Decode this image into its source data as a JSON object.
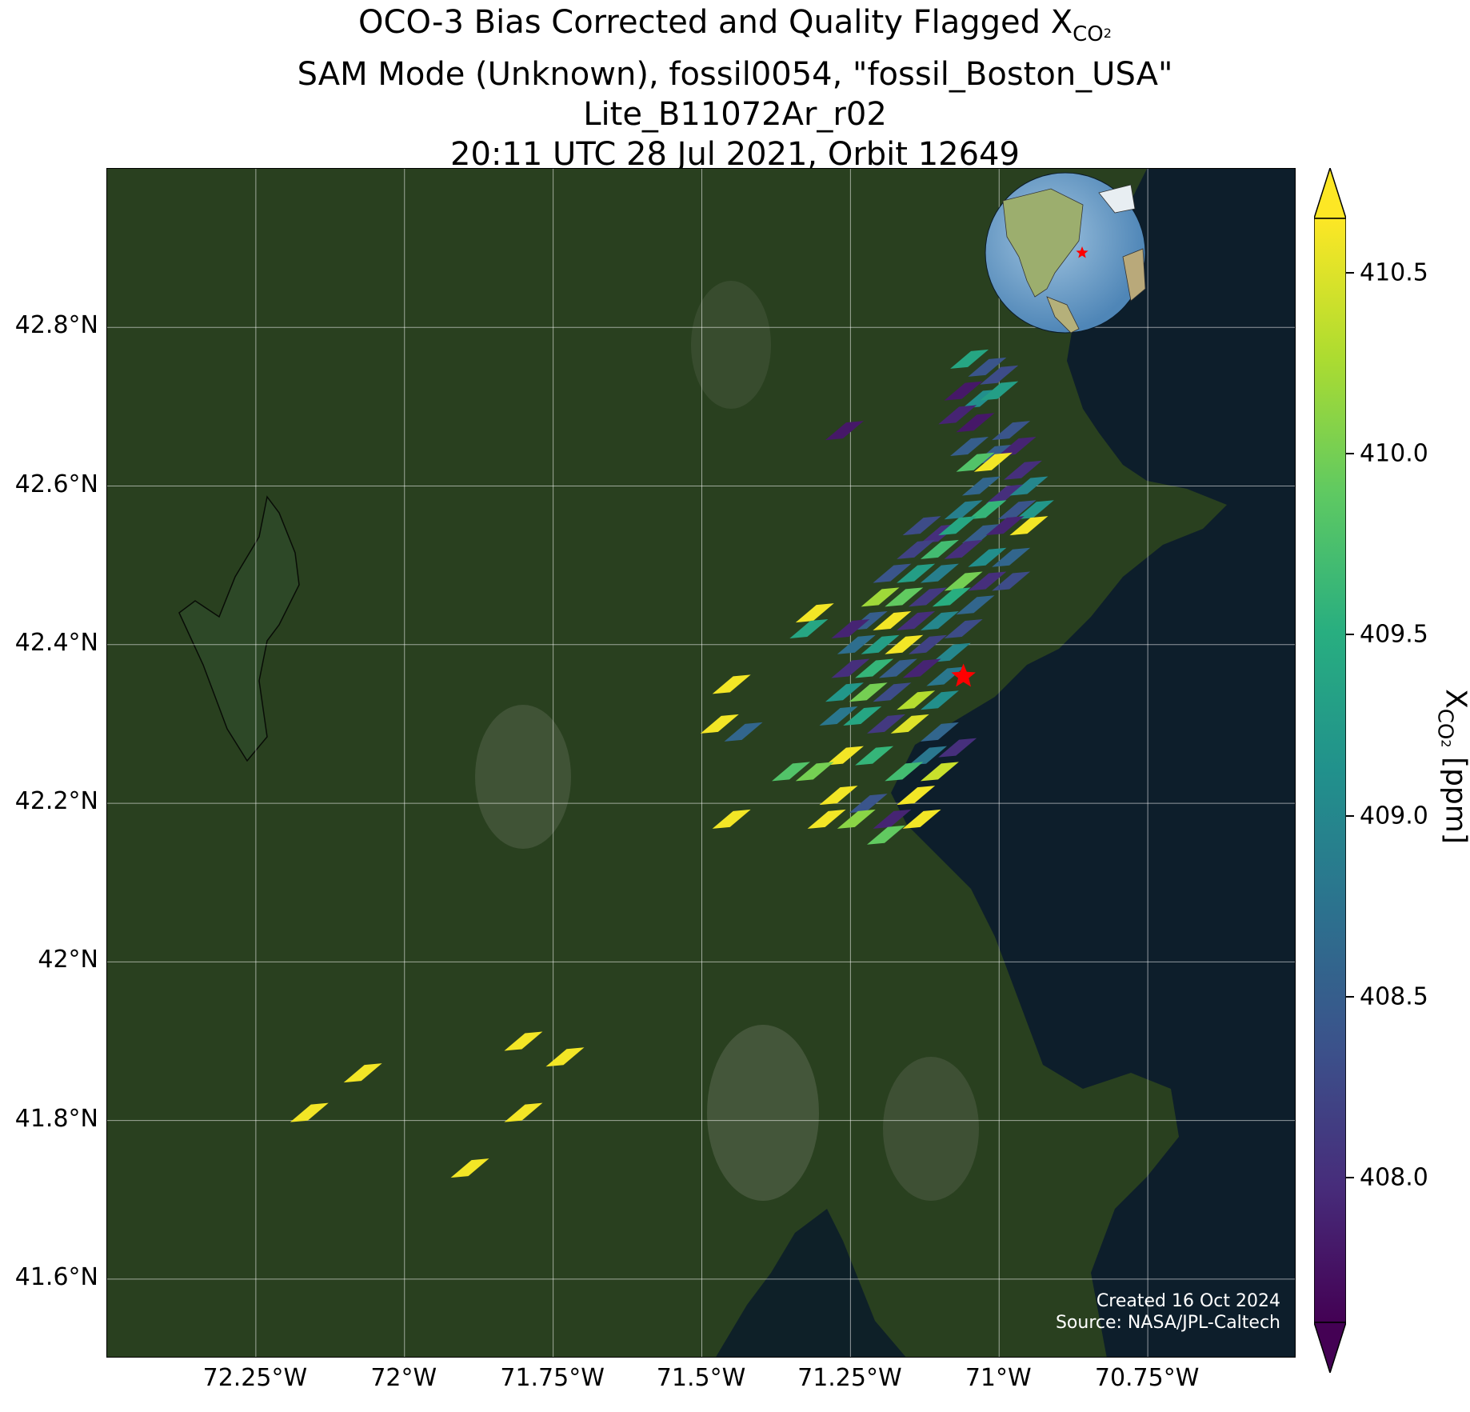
{
  "title": {
    "line1_prefix": "OCO-3 Bias Corrected and Quality Flagged X",
    "line1_sub": "CO",
    "line1_sub2": "2",
    "line2": "SAM Mode (Unknown), fossil0054, \"fossil_Boston_USA\"",
    "line3": "Lite_B11072Ar_r02",
    "line4": "20:11 UTC 28 Jul 2021, Orbit 12649"
  },
  "map": {
    "lon_range": [
      -72.5,
      -70.5
    ],
    "lat_range": [
      41.5,
      43.0
    ],
    "latitude_ticks": [
      {
        "value": 42.8,
        "label": "42.8°N"
      },
      {
        "value": 42.6,
        "label": "42.6°N"
      },
      {
        "value": 42.4,
        "label": "42.4°N"
      },
      {
        "value": 42.2,
        "label": "42.2°N"
      },
      {
        "value": 42.0,
        "label": "42°N"
      },
      {
        "value": 41.8,
        "label": "41.8°N"
      },
      {
        "value": 41.6,
        "label": "41.6°N"
      }
    ],
    "longitude_ticks": [
      {
        "value": -72.25,
        "label": "72.25°W"
      },
      {
        "value": -72.0,
        "label": "72°W"
      },
      {
        "value": -71.75,
        "label": "71.75°W"
      },
      {
        "value": -71.5,
        "label": "71.5°W"
      },
      {
        "value": -71.25,
        "label": "71.25°W"
      },
      {
        "value": -71.0,
        "label": "71°W"
      },
      {
        "value": -70.75,
        "label": "70.75°W"
      }
    ],
    "target_marker": {
      "lon": -71.06,
      "lat": 42.36,
      "color": "#ff0000",
      "symbol": "star"
    },
    "inset": "globe-locator-icon",
    "colors": {
      "land": "#29401f",
      "ocean": "#0d1e2b",
      "grid": "#ffffff"
    },
    "credit_line1": "Created 16 Oct 2024",
    "credit_line2": "Source: NASA/JPL-Caltech"
  },
  "colorbar": {
    "label_prefix": "X",
    "label_sub": "CO",
    "label_sub2": "2",
    "label_suffix": " [ppm]",
    "range": [
      407.6,
      410.65
    ],
    "extend": "both",
    "colormap": "viridis",
    "ticks": [
      {
        "value": 410.5,
        "label": "410.5"
      },
      {
        "value": 410.0,
        "label": "410.0"
      },
      {
        "value": 409.5,
        "label": "409.5"
      },
      {
        "value": 409.0,
        "label": "409.0"
      },
      {
        "value": 408.5,
        "label": "408.5"
      },
      {
        "value": 408.0,
        "label": "408.0"
      }
    ]
  },
  "chart_data": {
    "type": "scatter",
    "xlabel": "",
    "ylabel": "",
    "ylim": [
      41.5,
      43.0
    ],
    "xlim": [
      -72.5,
      -70.5
    ],
    "series": [
      {
        "points": [
          {
            "lon": -71.05,
            "lat": 42.76,
            "xco2": 409.4
          },
          {
            "lon": -71.02,
            "lat": 42.75,
            "xco2": 408.4
          },
          {
            "lon": -71.0,
            "lat": 42.74,
            "xco2": 408.3
          },
          {
            "lon": -71.06,
            "lat": 42.72,
            "xco2": 407.8
          },
          {
            "lon": -71.03,
            "lat": 42.71,
            "xco2": 409.1
          },
          {
            "lon": -71.0,
            "lat": 42.72,
            "xco2": 409.3
          },
          {
            "lon": -71.07,
            "lat": 42.69,
            "xco2": 407.9
          },
          {
            "lon": -71.04,
            "lat": 42.68,
            "xco2": 407.8
          },
          {
            "lon": -70.98,
            "lat": 42.67,
            "xco2": 408.4
          },
          {
            "lon": -71.26,
            "lat": 42.67,
            "xco2": 407.8
          },
          {
            "lon": -71.05,
            "lat": 42.65,
            "xco2": 408.5
          },
          {
            "lon": -71.01,
            "lat": 42.64,
            "xco2": 408.5
          },
          {
            "lon": -70.97,
            "lat": 42.65,
            "xco2": 407.9
          },
          {
            "lon": -71.04,
            "lat": 42.63,
            "xco2": 409.8
          },
          {
            "lon": -71.01,
            "lat": 42.63,
            "xco2": 410.6
          },
          {
            "lon": -70.96,
            "lat": 42.62,
            "xco2": 408.0
          },
          {
            "lon": -71.03,
            "lat": 42.6,
            "xco2": 408.6
          },
          {
            "lon": -70.99,
            "lat": 42.59,
            "xco2": 408.0
          },
          {
            "lon": -70.95,
            "lat": 42.6,
            "xco2": 409.0
          },
          {
            "lon": -71.06,
            "lat": 42.57,
            "xco2": 408.9
          },
          {
            "lon": -71.02,
            "lat": 42.57,
            "xco2": 409.6
          },
          {
            "lon": -70.97,
            "lat": 42.57,
            "xco2": 408.4
          },
          {
            "lon": -70.94,
            "lat": 42.57,
            "xco2": 409.2
          },
          {
            "lon": -71.1,
            "lat": 42.54,
            "xco2": 408.0
          },
          {
            "lon": -71.07,
            "lat": 42.55,
            "xco2": 409.4
          },
          {
            "lon": -71.03,
            "lat": 42.54,
            "xco2": 408.5
          },
          {
            "lon": -70.99,
            "lat": 42.55,
            "xco2": 407.9
          },
          {
            "lon": -70.95,
            "lat": 42.55,
            "xco2": 410.6
          },
          {
            "lon": -71.14,
            "lat": 42.52,
            "xco2": 408.2
          },
          {
            "lon": -71.1,
            "lat": 42.52,
            "xco2": 409.7
          },
          {
            "lon": -71.06,
            "lat": 42.52,
            "xco2": 408.0
          },
          {
            "lon": -71.02,
            "lat": 42.51,
            "xco2": 409.1
          },
          {
            "lon": -70.98,
            "lat": 42.51,
            "xco2": 408.6
          },
          {
            "lon": -71.18,
            "lat": 42.49,
            "xco2": 408.4
          },
          {
            "lon": -71.14,
            "lat": 42.49,
            "xco2": 409.3
          },
          {
            "lon": -71.1,
            "lat": 42.49,
            "xco2": 408.9
          },
          {
            "lon": -71.06,
            "lat": 42.48,
            "xco2": 410.0
          },
          {
            "lon": -71.02,
            "lat": 42.48,
            "xco2": 408.0
          },
          {
            "lon": -70.98,
            "lat": 42.48,
            "xco2": 408.3
          },
          {
            "lon": -71.2,
            "lat": 42.46,
            "xco2": 410.2
          },
          {
            "lon": -71.16,
            "lat": 42.46,
            "xco2": 409.9
          },
          {
            "lon": -71.12,
            "lat": 42.46,
            "xco2": 408.1
          },
          {
            "lon": -71.08,
            "lat": 42.46,
            "xco2": 409.5
          },
          {
            "lon": -71.04,
            "lat": 42.45,
            "xco2": 408.6
          },
          {
            "lon": -71.22,
            "lat": 42.43,
            "xco2": 408.5
          },
          {
            "lon": -71.18,
            "lat": 42.43,
            "xco2": 410.6
          },
          {
            "lon": -71.14,
            "lat": 42.43,
            "xco2": 408.0
          },
          {
            "lon": -71.1,
            "lat": 42.43,
            "xco2": 409.0
          },
          {
            "lon": -71.06,
            "lat": 42.42,
            "xco2": 408.3
          },
          {
            "lon": -71.24,
            "lat": 42.4,
            "xco2": 408.7
          },
          {
            "lon": -71.2,
            "lat": 42.4,
            "xco2": 409.3
          },
          {
            "lon": -71.16,
            "lat": 42.4,
            "xco2": 410.6
          },
          {
            "lon": -71.12,
            "lat": 42.4,
            "xco2": 408.2
          },
          {
            "lon": -71.08,
            "lat": 42.39,
            "xco2": 409.0
          },
          {
            "lon": -71.25,
            "lat": 42.37,
            "xco2": 408.0
          },
          {
            "lon": -71.21,
            "lat": 42.37,
            "xco2": 409.6
          },
          {
            "lon": -71.17,
            "lat": 42.37,
            "xco2": 408.5
          },
          {
            "lon": -71.13,
            "lat": 42.37,
            "xco2": 407.9
          },
          {
            "lon": -71.09,
            "lat": 42.36,
            "xco2": 408.8
          },
          {
            "lon": -71.26,
            "lat": 42.34,
            "xco2": 409.2
          },
          {
            "lon": -71.22,
            "lat": 42.34,
            "xco2": 410.0
          },
          {
            "lon": -71.18,
            "lat": 42.34,
            "xco2": 408.3
          },
          {
            "lon": -71.14,
            "lat": 42.33,
            "xco2": 410.3
          },
          {
            "lon": -71.1,
            "lat": 42.33,
            "xco2": 409.1
          },
          {
            "lon": -71.27,
            "lat": 42.31,
            "xco2": 408.8
          },
          {
            "lon": -71.23,
            "lat": 42.31,
            "xco2": 409.4
          },
          {
            "lon": -71.19,
            "lat": 42.3,
            "xco2": 408.1
          },
          {
            "lon": -71.15,
            "lat": 42.3,
            "xco2": 410.5
          },
          {
            "lon": -71.1,
            "lat": 42.29,
            "xco2": 408.6
          },
          {
            "lon": -71.26,
            "lat": 42.26,
            "xco2": 410.6
          },
          {
            "lon": -71.21,
            "lat": 42.26,
            "xco2": 409.6
          },
          {
            "lon": -71.12,
            "lat": 42.26,
            "xco2": 408.8
          },
          {
            "lon": -71.07,
            "lat": 42.27,
            "xco2": 408.0
          },
          {
            "lon": -71.31,
            "lat": 42.24,
            "xco2": 410.0
          },
          {
            "lon": -71.16,
            "lat": 42.24,
            "xco2": 409.7
          },
          {
            "lon": -71.1,
            "lat": 42.24,
            "xco2": 410.4
          },
          {
            "lon": -71.27,
            "lat": 42.21,
            "xco2": 410.6
          },
          {
            "lon": -71.22,
            "lat": 42.2,
            "xco2": 408.4
          },
          {
            "lon": -71.14,
            "lat": 42.21,
            "xco2": 410.6
          },
          {
            "lon": -71.29,
            "lat": 42.18,
            "xco2": 410.6
          },
          {
            "lon": -71.24,
            "lat": 42.18,
            "xco2": 410.1
          },
          {
            "lon": -71.18,
            "lat": 42.18,
            "xco2": 407.9
          },
          {
            "lon": -71.13,
            "lat": 42.18,
            "xco2": 410.6
          },
          {
            "lon": -71.19,
            "lat": 42.16,
            "xco2": 409.9
          },
          {
            "lon": -71.31,
            "lat": 42.44,
            "xco2": 410.6
          },
          {
            "lon": -71.32,
            "lat": 42.42,
            "xco2": 409.4
          },
          {
            "lon": -71.13,
            "lat": 42.55,
            "xco2": 408.3
          },
          {
            "lon": -71.25,
            "lat": 42.42,
            "xco2": 407.9
          },
          {
            "lon": -71.45,
            "lat": 42.35,
            "xco2": 410.6
          },
          {
            "lon": -71.47,
            "lat": 42.3,
            "xco2": 410.6
          },
          {
            "lon": -71.43,
            "lat": 42.29,
            "xco2": 408.6
          },
          {
            "lon": -71.35,
            "lat": 42.24,
            "xco2": 409.8
          },
          {
            "lon": -71.45,
            "lat": 42.18,
            "xco2": 410.6
          },
          {
            "lon": -71.8,
            "lat": 41.9,
            "xco2": 410.6
          },
          {
            "lon": -71.73,
            "lat": 41.88,
            "xco2": 410.6
          },
          {
            "lon": -72.07,
            "lat": 41.86,
            "xco2": 410.6
          },
          {
            "lon": -72.16,
            "lat": 41.81,
            "xco2": 410.6
          },
          {
            "lon": -71.8,
            "lat": 41.81,
            "xco2": 410.6
          },
          {
            "lon": -71.89,
            "lat": 41.74,
            "xco2": 410.6
          }
        ]
      }
    ]
  }
}
